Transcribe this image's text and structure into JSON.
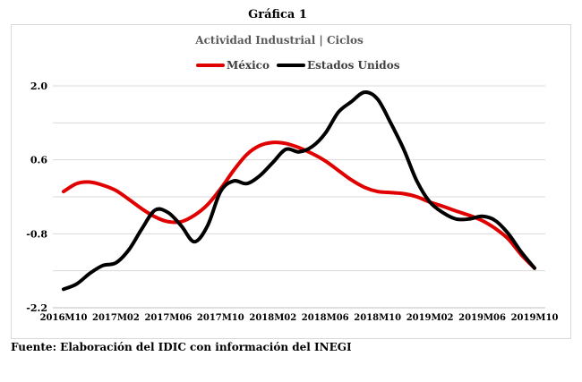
{
  "heading": "Gráfica 1",
  "source_note": "Fuente: Elaboración del IDIC con información del INEGI",
  "chart_data": {
    "type": "line",
    "title": "Actividad Industrial | Ciclos",
    "xlabel": "",
    "ylabel": "",
    "ylim": [
      -2.2,
      2.0
    ],
    "yticks": [
      -2.2,
      -0.8,
      0.6,
      2.0
    ],
    "ytick_labels": [
      "-2.2",
      "-0.8",
      "0.6",
      "2.0"
    ],
    "grid": true,
    "legend_position": "top-center",
    "x_tick_labels": [
      "2016M10",
      "2017M02",
      "2017M06",
      "2017M10",
      "2018M02",
      "2018M06",
      "2018M10",
      "2019M02",
      "2019M06",
      "2019M10"
    ],
    "x": [
      "2016M10",
      "2016M11",
      "2016M12",
      "2017M01",
      "2017M02",
      "2017M03",
      "2017M04",
      "2017M05",
      "2017M06",
      "2017M07",
      "2017M08",
      "2017M09",
      "2017M10",
      "2017M11",
      "2017M12",
      "2018M01",
      "2018M02",
      "2018M03",
      "2018M04",
      "2018M05",
      "2018M06",
      "2018M07",
      "2018M08",
      "2018M09",
      "2018M10",
      "2018M11",
      "2018M12",
      "2019M01",
      "2019M02",
      "2019M03",
      "2019M04",
      "2019M05",
      "2019M06",
      "2019M07",
      "2019M08",
      "2019M09",
      "2019M10"
    ],
    "series": [
      {
        "name": "México",
        "color": "#e00000",
        "values": [
          0.0,
          0.15,
          0.18,
          0.12,
          0.02,
          -0.15,
          -0.33,
          -0.48,
          -0.57,
          -0.57,
          -0.45,
          -0.25,
          0.05,
          0.4,
          0.7,
          0.87,
          0.93,
          0.91,
          0.83,
          0.72,
          0.58,
          0.4,
          0.22,
          0.08,
          0.0,
          -0.02,
          -0.04,
          -0.1,
          -0.2,
          -0.28,
          -0.37,
          -0.45,
          -0.55,
          -0.7,
          -0.9,
          -1.2,
          -1.45
        ]
      },
      {
        "name": "Estados Unidos",
        "color": "#000000",
        "values": [
          -1.85,
          -1.75,
          -1.55,
          -1.4,
          -1.35,
          -1.1,
          -0.7,
          -0.35,
          -0.4,
          -0.65,
          -0.95,
          -0.65,
          0.0,
          0.2,
          0.15,
          0.3,
          0.55,
          0.8,
          0.75,
          0.85,
          1.1,
          1.5,
          1.7,
          1.88,
          1.75,
          1.3,
          0.8,
          0.2,
          -0.2,
          -0.4,
          -0.52,
          -0.52,
          -0.47,
          -0.55,
          -0.8,
          -1.15,
          -1.45
        ]
      }
    ]
  }
}
